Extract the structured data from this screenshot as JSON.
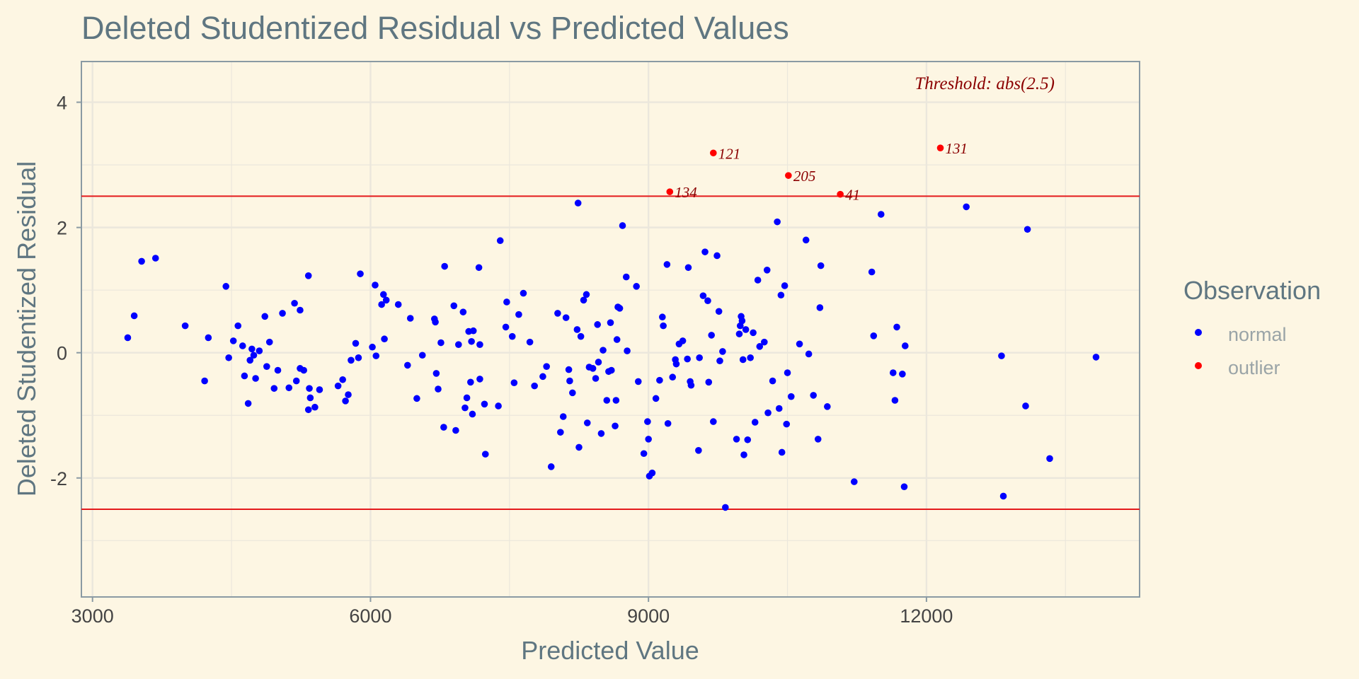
{
  "chart_data": {
    "type": "scatter",
    "title": "Deleted Studentized Residual vs Predicted Values",
    "xlabel": "Predicted Value",
    "ylabel": "Deleted Studentized Residual",
    "xlim": [
      2880,
      14300
    ],
    "ylim": [
      -3.9,
      4.65
    ],
    "x_ticks": [
      3000,
      6000,
      9000,
      12000
    ],
    "y_ticks": [
      4,
      2,
      0,
      -2
    ],
    "y_tick_labels": [
      "4",
      "2",
      "0",
      "-2"
    ],
    "threshold": 2.5,
    "threshold_label": "Threshold: abs(2.5)",
    "grid": true,
    "legend": {
      "title": "Observation",
      "position": "right",
      "entries": [
        {
          "label": "normal",
          "color": "#0000ff"
        },
        {
          "label": "outlier",
          "color": "#ff0000"
        }
      ]
    },
    "colors": {
      "normal": "#0000ff",
      "outlier": "#ff0000",
      "threshold_line": "#e41a1c",
      "annotation": "#8b0000",
      "panel_background": "#fdf6e3",
      "grid": "#ebe7dc",
      "frame": "#8a9aa3"
    },
    "outliers": [
      {
        "x": 9230,
        "y": 2.57,
        "label": "134"
      },
      {
        "x": 9700,
        "y": 3.19,
        "label": "121"
      },
      {
        "x": 10510,
        "y": 2.83,
        "label": "205"
      },
      {
        "x": 11070,
        "y": 2.53,
        "label": "41"
      },
      {
        "x": 12150,
        "y": 3.27,
        "label": "131"
      }
    ],
    "normal": [
      [
        3380,
        0.24
      ],
      [
        3450,
        0.59
      ],
      [
        3530,
        1.46
      ],
      [
        3680,
        1.51
      ],
      [
        4000,
        0.43
      ],
      [
        4210,
        -0.45
      ],
      [
        4250,
        0.24
      ],
      [
        4440,
        1.06
      ],
      [
        4470,
        -0.08
      ],
      [
        4520,
        0.19
      ],
      [
        4570,
        0.43
      ],
      [
        4620,
        0.11
      ],
      [
        4640,
        -0.37
      ],
      [
        4680,
        -0.81
      ],
      [
        4700,
        -0.12
      ],
      [
        4720,
        0.06
      ],
      [
        4740,
        -0.04
      ],
      [
        4760,
        -0.41
      ],
      [
        4800,
        0.03
      ],
      [
        4860,
        0.58
      ],
      [
        4880,
        -0.22
      ],
      [
        4910,
        0.17
      ],
      [
        4960,
        -0.57
      ],
      [
        5000,
        -0.28
      ],
      [
        5050,
        0.63
      ],
      [
        5120,
        -0.56
      ],
      [
        5180,
        0.79
      ],
      [
        5200,
        -0.45
      ],
      [
        5240,
        0.68
      ],
      [
        5240,
        -0.25
      ],
      [
        5280,
        -0.28
      ],
      [
        5330,
        1.23
      ],
      [
        5330,
        -0.91
      ],
      [
        5340,
        -0.57
      ],
      [
        5350,
        -0.72
      ],
      [
        5400,
        -0.87
      ],
      [
        5450,
        -0.59
      ],
      [
        5650,
        -0.53
      ],
      [
        5700,
        -0.43
      ],
      [
        5730,
        -0.77
      ],
      [
        5760,
        -0.67
      ],
      [
        5790,
        -0.12
      ],
      [
        5840,
        0.15
      ],
      [
        5870,
        -0.08
      ],
      [
        5890,
        1.26
      ],
      [
        6020,
        0.09
      ],
      [
        6050,
        1.08
      ],
      [
        6060,
        -0.05
      ],
      [
        6120,
        0.77
      ],
      [
        6140,
        0.93
      ],
      [
        6150,
        0.22
      ],
      [
        6170,
        0.84
      ],
      [
        6300,
        0.77
      ],
      [
        6400,
        -0.2
      ],
      [
        6430,
        0.55
      ],
      [
        6500,
        -0.73
      ],
      [
        6560,
        -0.04
      ],
      [
        6690,
        0.54
      ],
      [
        6700,
        0.49
      ],
      [
        6710,
        -0.33
      ],
      [
        6730,
        -0.58
      ],
      [
        6760,
        0.16
      ],
      [
        6790,
        -1.19
      ],
      [
        6800,
        1.38
      ],
      [
        6900,
        0.75
      ],
      [
        6920,
        -1.24
      ],
      [
        6950,
        0.13
      ],
      [
        7000,
        0.65
      ],
      [
        7020,
        -0.88
      ],
      [
        7040,
        -0.72
      ],
      [
        7060,
        0.34
      ],
      [
        7080,
        -0.47
      ],
      [
        7090,
        0.18
      ],
      [
        7100,
        -0.98
      ],
      [
        7110,
        0.35
      ],
      [
        7170,
        1.36
      ],
      [
        7180,
        -0.42
      ],
      [
        7180,
        0.13
      ],
      [
        7230,
        -0.82
      ],
      [
        7240,
        -1.62
      ],
      [
        7380,
        -0.85
      ],
      [
        7400,
        1.79
      ],
      [
        7460,
        0.41
      ],
      [
        7470,
        0.81
      ],
      [
        7530,
        0.26
      ],
      [
        7550,
        -0.48
      ],
      [
        7600,
        0.61
      ],
      [
        7650,
        0.95
      ],
      [
        7720,
        0.17
      ],
      [
        7770,
        -0.53
      ],
      [
        7860,
        -0.38
      ],
      [
        7900,
        -0.22
      ],
      [
        7950,
        -1.82
      ],
      [
        8020,
        0.63
      ],
      [
        8050,
        -1.27
      ],
      [
        8080,
        -1.02
      ],
      [
        8110,
        0.56
      ],
      [
        8140,
        -0.27
      ],
      [
        8150,
        -0.45
      ],
      [
        8180,
        -0.64
      ],
      [
        8230,
        0.37
      ],
      [
        8240,
        2.39
      ],
      [
        8250,
        -1.51
      ],
      [
        8270,
        0.26
      ],
      [
        8300,
        0.84
      ],
      [
        8330,
        0.93
      ],
      [
        8340,
        -1.12
      ],
      [
        8360,
        -0.23
      ],
      [
        8400,
        -0.25
      ],
      [
        8430,
        -0.41
      ],
      [
        8450,
        0.45
      ],
      [
        8460,
        -0.15
      ],
      [
        8490,
        -1.29
      ],
      [
        8510,
        0.04
      ],
      [
        8550,
        -0.76
      ],
      [
        8570,
        -0.3
      ],
      [
        8590,
        0.48
      ],
      [
        8600,
        -0.28
      ],
      [
        8640,
        -1.17
      ],
      [
        8650,
        -0.76
      ],
      [
        8660,
        0.21
      ],
      [
        8670,
        0.73
      ],
      [
        8690,
        0.71
      ],
      [
        8720,
        2.03
      ],
      [
        8760,
        1.21
      ],
      [
        8770,
        0.03
      ],
      [
        8870,
        1.06
      ],
      [
        8890,
        -0.46
      ],
      [
        8950,
        -1.61
      ],
      [
        8990,
        -1.1
      ],
      [
        9000,
        -1.38
      ],
      [
        9010,
        -1.97
      ],
      [
        9040,
        -1.92
      ],
      [
        9080,
        -0.73
      ],
      [
        9120,
        -0.44
      ],
      [
        9150,
        0.57
      ],
      [
        9160,
        0.43
      ],
      [
        9200,
        1.41
      ],
      [
        9210,
        -1.13
      ],
      [
        9260,
        -0.39
      ],
      [
        9290,
        -0.11
      ],
      [
        9300,
        -0.18
      ],
      [
        9330,
        0.14
      ],
      [
        9370,
        0.19
      ],
      [
        9420,
        -0.1
      ],
      [
        9430,
        1.36
      ],
      [
        9450,
        -0.46
      ],
      [
        9460,
        -0.52
      ],
      [
        9540,
        -1.56
      ],
      [
        9550,
        -0.08
      ],
      [
        9590,
        0.91
      ],
      [
        9610,
        1.61
      ],
      [
        9640,
        0.83
      ],
      [
        9650,
        -0.47
      ],
      [
        9680,
        0.28
      ],
      [
        9700,
        -1.1
      ],
      [
        9740,
        1.55
      ],
      [
        9760,
        0.66
      ],
      [
        9770,
        -0.13
      ],
      [
        9800,
        0.02
      ],
      [
        9830,
        -2.47
      ],
      [
        9950,
        -1.38
      ],
      [
        9980,
        0.3
      ],
      [
        9990,
        0.43
      ],
      [
        10000,
        0.58
      ],
      [
        10010,
        0.51
      ],
      [
        10020,
        -0.11
      ],
      [
        10030,
        -1.63
      ],
      [
        10050,
        0.37
      ],
      [
        10070,
        -1.39
      ],
      [
        10100,
        -0.08
      ],
      [
        10130,
        0.32
      ],
      [
        10150,
        -1.11
      ],
      [
        10180,
        1.16
      ],
      [
        10200,
        0.1
      ],
      [
        10250,
        0.17
      ],
      [
        10280,
        1.32
      ],
      [
        10290,
        -0.96
      ],
      [
        10340,
        -0.45
      ],
      [
        10390,
        2.09
      ],
      [
        10410,
        -0.89
      ],
      [
        10430,
        0.92
      ],
      [
        10440,
        -1.59
      ],
      [
        10470,
        1.07
      ],
      [
        10490,
        -1.14
      ],
      [
        10500,
        -0.32
      ],
      [
        10540,
        -0.7
      ],
      [
        10630,
        0.14
      ],
      [
        10700,
        1.8
      ],
      [
        10730,
        -0.02
      ],
      [
        10780,
        -0.68
      ],
      [
        10830,
        -1.38
      ],
      [
        10850,
        0.72
      ],
      [
        10860,
        1.39
      ],
      [
        10930,
        -0.86
      ],
      [
        11220,
        -2.06
      ],
      [
        11410,
        1.29
      ],
      [
        11430,
        0.27
      ],
      [
        11510,
        2.21
      ],
      [
        11640,
        -0.32
      ],
      [
        11660,
        -0.76
      ],
      [
        11680,
        0.41
      ],
      [
        11740,
        -0.34
      ],
      [
        11760,
        -2.14
      ],
      [
        11770,
        0.11
      ],
      [
        12430,
        2.33
      ],
      [
        12810,
        -0.05
      ],
      [
        12830,
        -2.29
      ],
      [
        13070,
        -0.85
      ],
      [
        13090,
        1.97
      ],
      [
        13330,
        -1.69
      ],
      [
        13830,
        -0.07
      ]
    ]
  }
}
